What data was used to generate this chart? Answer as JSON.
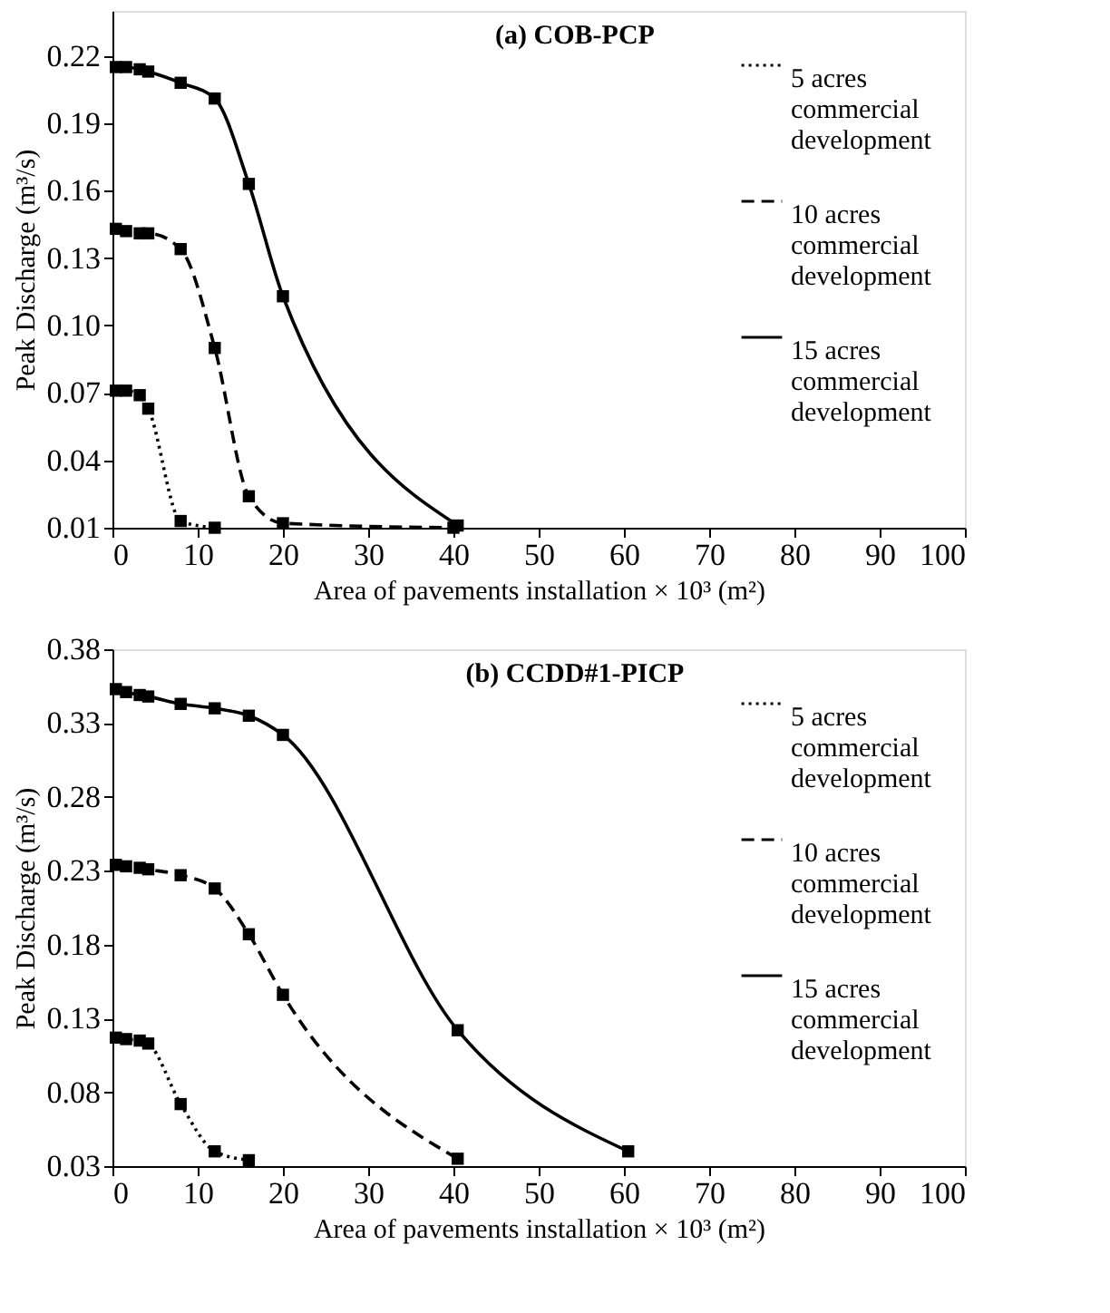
{
  "chart_data": [
    {
      "type": "line",
      "title": "(a) COB-PCP",
      "xlabel": "Area of pavements installation × 10³ (m²)",
      "ylabel": "Peak Discharge (m³/s)",
      "xlim": [
        0,
        100
      ],
      "xticks": [
        0,
        10,
        20,
        30,
        40,
        50,
        60,
        70,
        80,
        90,
        100
      ],
      "ylim": [
        0.01,
        0.24
      ],
      "yticks": [
        0.01,
        0.04,
        0.07,
        {
          "value": 0.1,
          "label": "0.10"
        },
        0.13,
        0.16,
        0.19,
        0.22
      ],
      "grid": false,
      "legend": "top right",
      "marker": "square",
      "series": [
        {
          "name": "5 acres commercial development",
          "color": "#000000",
          "line_style": "dotted",
          "x": [
            0.4,
            1.6,
            3.2,
            4.2,
            8,
            12
          ],
          "values": [
            0.071,
            0.071,
            0.069,
            0.063,
            0.013,
            0.01
          ]
        },
        {
          "name": "10 acres commercial development",
          "color": "#000000",
          "line_style": "dashed",
          "x": [
            0.4,
            1.6,
            3.2,
            4.2,
            8,
            12,
            16,
            20,
            40
          ],
          "values": [
            0.143,
            0.142,
            0.141,
            0.141,
            0.134,
            0.09,
            0.024,
            0.012,
            0.01
          ]
        },
        {
          "name": "15 acres commercial development",
          "color": "#000000",
          "line_style": "solid",
          "x": [
            0.4,
            1.6,
            3.2,
            4.2,
            8,
            12,
            16,
            20,
            40.5
          ],
          "values": [
            0.215,
            0.215,
            0.214,
            0.213,
            0.208,
            0.201,
            0.163,
            0.113,
            0.011
          ]
        }
      ]
    },
    {
      "type": "line",
      "title": "(b) CCDD#1-PICP",
      "xlabel": "Area of pavements installation × 10³ (m²)",
      "ylabel": "Peak Discharge (m³/s)",
      "xlim": [
        0,
        100
      ],
      "xticks": [
        0,
        10,
        20,
        30,
        40,
        50,
        60,
        70,
        80,
        90,
        100
      ],
      "ylim": [
        0.03,
        0.38
      ],
      "yticks": [
        0.03,
        0.08,
        0.13,
        0.18,
        0.23,
        0.28,
        0.33,
        0.38
      ],
      "grid": false,
      "legend": "top right",
      "marker": "square",
      "series": [
        {
          "name": "5 acres commercial development",
          "color": "#000000",
          "line_style": "dotted",
          "x": [
            0.4,
            1.6,
            3.2,
            4.2,
            8,
            12,
            16
          ],
          "values": [
            0.117,
            0.116,
            0.115,
            0.113,
            0.072,
            0.04,
            0.034
          ]
        },
        {
          "name": "10 acres commercial development",
          "color": "#000000",
          "line_style": "dashed",
          "x": [
            0.4,
            1.6,
            3.2,
            4.2,
            8,
            12,
            16,
            20,
            40.5
          ],
          "values": [
            0.234,
            0.233,
            0.232,
            0.231,
            0.227,
            0.218,
            0.187,
            0.146,
            0.035
          ]
        },
        {
          "name": "15 acres commercial development",
          "color": "#000000",
          "line_style": "solid",
          "x": [
            0.4,
            1.6,
            3.2,
            4.2,
            8,
            12,
            16,
            20,
            40.5,
            60.5
          ],
          "values": [
            0.353,
            0.351,
            0.349,
            0.348,
            0.343,
            0.34,
            0.335,
            0.322,
            0.122,
            0.04
          ]
        }
      ]
    }
  ]
}
